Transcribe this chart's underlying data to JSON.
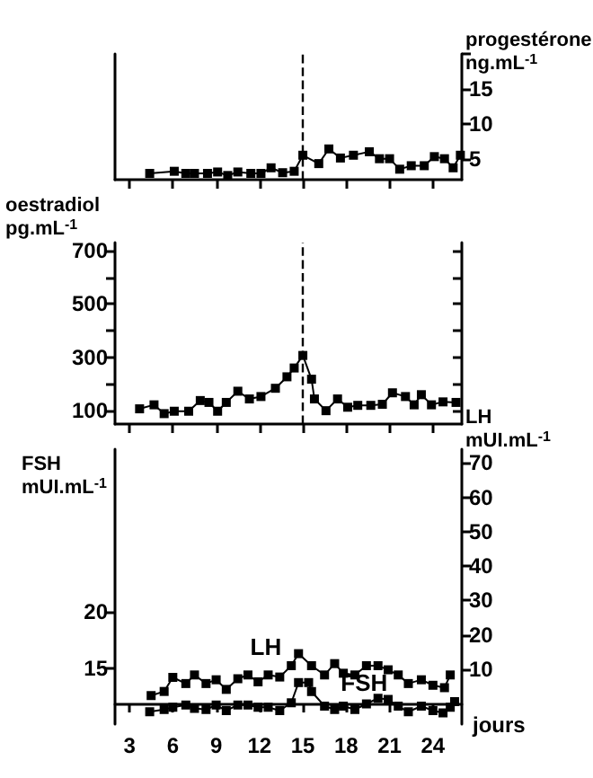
{
  "chart_data": [
    {
      "type": "line",
      "xlim": [
        2,
        26
      ],
      "xticks": [
        3,
        6,
        9,
        12,
        15,
        18,
        21,
        24
      ],
      "tick_labels": "y",
      "y2lim": [
        2,
        20
      ],
      "y2ticks": [
        5,
        10,
        15,
        {
          "value": 20,
          "label": null
        }
      ],
      "y2label": "progestérone ng.mL$^{-1}$",
      "marker": "square",
      "ref_lines": [
        {
          "axis": "x",
          "value": 15,
          "line_style": "dashed"
        }
      ],
      "series": [
        {
          "axis": "y2",
          "color": "#000000",
          "x": [
            4.4,
            6.1,
            6.9,
            7.5,
            8.4,
            9.1,
            9.8,
            10.5,
            11.4,
            12.1,
            12.8,
            13.6,
            14.4,
            15.0,
            16.1,
            16.8,
            17.6,
            18.5,
            19.6,
            20.3,
            21.0,
            21.7,
            22.5,
            23.4,
            24.1,
            24.8,
            25.4,
            25.9
          ],
          "values": [
            2.9,
            3.2,
            2.9,
            2.9,
            2.9,
            3.1,
            2.6,
            3.1,
            2.9,
            2.9,
            3.7,
            3.0,
            3.2,
            5.5,
            4.3,
            6.4,
            5.1,
            5.5,
            6.0,
            5.0,
            5.0,
            3.5,
            4.0,
            4.0,
            5.3,
            5.0,
            3.7,
            5.5
          ]
        }
      ]
    },
    {
      "type": "line",
      "xlim": [
        2,
        26
      ],
      "xticks": [
        3,
        6,
        9,
        12,
        15,
        18,
        21,
        24
      ],
      "tick_labels": "y",
      "ylim": [
        50,
        730
      ],
      "yticks": [
        100,
        {
          "value": 200,
          "label": null
        },
        300,
        {
          "value": 400,
          "label": null
        },
        500,
        {
          "value": 600,
          "label": null
        },
        700
      ],
      "ylabel": "oestradiol pg.mL$^{-1}$",
      "marker": "square",
      "ref_lines": [
        {
          "axis": "x",
          "value": 15,
          "line_style": "dashed"
        }
      ],
      "series": [
        {
          "color": "#000000",
          "x": [
            3.7,
            4.7,
            5.4,
            6.1,
            7.1,
            7.9,
            8.5,
            9.1,
            9.7,
            10.5,
            11.3,
            12.1,
            13.1,
            13.9,
            14.4,
            15.0,
            15.6,
            15.8,
            16.6,
            17.4,
            18.1,
            18.8,
            19.7,
            20.5,
            21.2,
            22.1,
            22.7,
            23.2,
            23.9,
            24.7,
            25.6
          ],
          "values": [
            107,
            122,
            89,
            98,
            98,
            138,
            131,
            98,
            131,
            173,
            144,
            153,
            184,
            227,
            260,
            307,
            218,
            144,
            100,
            144,
            113,
            120,
            120,
            124,
            167,
            153,
            122,
            160,
            122,
            133,
            131
          ]
        }
      ]
    },
    {
      "type": "line",
      "xlim": [
        2,
        26
      ],
      "xticks": [
        3,
        6,
        9,
        12,
        15,
        18,
        21,
        24
      ],
      "xlabel": "jours",
      "ylim": [
        10,
        34.5
      ],
      "yticks": [
        15,
        20
      ],
      "ylabel": "FSH mUI.mL$^{-1}$",
      "y2lim": [
        -6,
        74
      ],
      "y2ticks": [
        10,
        20,
        30,
        40,
        50,
        60,
        70
      ],
      "y2label": "LH mUI.mL$^{-1}$",
      "marker": "square",
      "series": [
        {
          "name": "LH",
          "axis": "y2",
          "color": "#000000",
          "x": [
            4.5,
            5.4,
            6.0,
            6.9,
            7.5,
            8.3,
            9.0,
            9.7,
            10.5,
            11.2,
            11.9,
            12.6,
            13.4,
            14.2,
            14.7,
            15.6,
            16.5,
            17.2,
            17.8,
            18.6,
            19.4,
            20.2,
            20.9,
            21.6,
            22.3,
            23.2,
            24.0,
            24.8,
            25.2
          ],
          "values": [
            2.3,
            3.5,
            7.6,
            5.8,
            8.3,
            5.8,
            6.9,
            4.1,
            7.2,
            8.3,
            6.3,
            8.3,
            7.7,
            11,
            14.5,
            11,
            8.3,
            11.6,
            8.8,
            8.3,
            11,
            11,
            9.8,
            8.3,
            5.8,
            6.9,
            5.3,
            4.6,
            8.3
          ]
        },
        {
          "name": "FSH",
          "color": "#000000",
          "x": [
            4.4,
            5.4,
            6.0,
            6.9,
            7.5,
            8.3,
            9.0,
            9.7,
            10.5,
            11.2,
            11.9,
            12.6,
            13.4,
            14.2,
            14.7,
            15.4,
            15.6,
            16.5,
            17.2,
            17.8,
            18.6,
            19.4,
            20.2,
            20.9,
            21.6,
            22.3,
            23.2,
            24.0,
            24.7,
            25.2,
            25.5
          ],
          "values": [
            11.1,
            11.3,
            11.5,
            11.7,
            11.4,
            11.3,
            11.7,
            11.2,
            11.7,
            11.7,
            11.5,
            11.5,
            11.2,
            11.9,
            13.7,
            13.7,
            12.9,
            11.6,
            11.3,
            11.6,
            11.3,
            11.8,
            12.3,
            12.2,
            11.6,
            11.1,
            11.6,
            11.2,
            11.0,
            11.5,
            12.0
          ]
        }
      ]
    }
  ]
}
